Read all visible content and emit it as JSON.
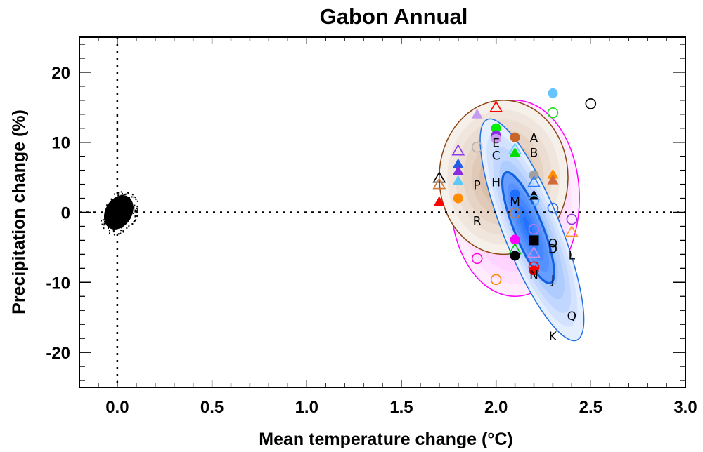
{
  "chart_data": {
    "type": "scatter",
    "title": "Gabon Annual",
    "xlabel": "Mean temperature change (°C)",
    "ylabel": "Precipitation change (%)",
    "xlim": [
      -0.2,
      3.0
    ],
    "ylim": [
      -25,
      25
    ],
    "xticks": [
      0.0,
      0.5,
      1.0,
      1.5,
      2.0,
      2.5,
      3.0
    ],
    "xtick_labels": [
      "0.0",
      "0.5",
      "1.0",
      "1.5",
      "2.0",
      "2.5",
      "3.0"
    ],
    "yticks": [
      -20,
      -10,
      0,
      10,
      20
    ],
    "ytick_labels": [
      "-20",
      "-10",
      "0",
      "10",
      "20"
    ],
    "grid": false,
    "reference_lines": [
      {
        "axis": "x",
        "value": 0,
        "style": "dotted"
      },
      {
        "axis": "y",
        "value": 0,
        "style": "dotted"
      }
    ],
    "natural_variability_cloud": {
      "center": [
        0.0,
        0.0
      ],
      "x_spread": 0.05,
      "y_spread": 2.0,
      "color": "#000000"
    },
    "ellipses": [
      {
        "name": "pink",
        "center": [
          2.1,
          2.0
        ],
        "semi_x": 0.34,
        "semi_y": 14.0,
        "angle_deg": 0,
        "fill": "#ff66ff",
        "edge": "#ff00ff"
      },
      {
        "name": "brown",
        "center": [
          2.04,
          5.0
        ],
        "semi_x": 0.34,
        "semi_y": 11.0,
        "angle_deg": 0,
        "fill": "#b8835a",
        "edge": "#8b4513"
      },
      {
        "name": "blue-outer",
        "center": [
          2.19,
          -2.5
        ],
        "semi_x": 0.15,
        "semi_y": 17.0,
        "angle_deg": -22,
        "fill": "#1e6fff",
        "edge": "#1e6fe0"
      },
      {
        "name": "blue-inner",
        "center": [
          2.17,
          -2.2
        ],
        "semi_x": 0.075,
        "semi_y": 8.5,
        "angle_deg": -22,
        "fill": "#1e6fff",
        "edge": "#1060e0"
      }
    ],
    "markers": [
      {
        "x": 1.7,
        "y": 1.5,
        "shape": "triangle",
        "filled": true,
        "color": "#ff0000"
      },
      {
        "x": 1.7,
        "y": 4.9,
        "shape": "triangle",
        "filled": false,
        "color": "#000000"
      },
      {
        "x": 1.7,
        "y": 4.0,
        "shape": "triangle",
        "filled": false,
        "color": "#cc7a3a"
      },
      {
        "x": 1.8,
        "y": 8.8,
        "shape": "triangle",
        "filled": false,
        "color": "#8a3df0"
      },
      {
        "x": 1.8,
        "y": 6.9,
        "shape": "triangle",
        "filled": true,
        "color": "#1e5fe6"
      },
      {
        "x": 1.8,
        "y": 5.9,
        "shape": "triangle",
        "filled": true,
        "color": "#8a2be2"
      },
      {
        "x": 1.8,
        "y": 4.5,
        "shape": "triangle",
        "filled": true,
        "color": "#5ec8f5"
      },
      {
        "x": 1.8,
        "y": 2.0,
        "shape": "circle",
        "filled": true,
        "color": "#ff8c00"
      },
      {
        "x": 1.9,
        "y": 14.0,
        "shape": "triangle",
        "filled": true,
        "color": "#c39bf0"
      },
      {
        "x": 1.9,
        "y": 9.3,
        "shape": "circle",
        "filled": false,
        "color": "#b4b4b4"
      },
      {
        "x": 2.0,
        "y": 15.0,
        "shape": "triangle",
        "filled": false,
        "color": "#ff0000"
      },
      {
        "x": 2.0,
        "y": 12.0,
        "shape": "circle",
        "filled": true,
        "color": "#00ee00"
      },
      {
        "x": 2.0,
        "y": 11.0,
        "shape": "circle",
        "filled": true,
        "color": "#8a2be2"
      },
      {
        "x": 2.0,
        "y": 10.5,
        "shape": "circle",
        "filled": true,
        "color": "#cc99f0"
      },
      {
        "x": 2.0,
        "y": -9.6,
        "shape": "circle",
        "filled": false,
        "color": "#ff8c00"
      },
      {
        "x": 1.9,
        "y": -6.6,
        "shape": "circle",
        "filled": false,
        "color": "#ff00dd"
      },
      {
        "x": 2.1,
        "y": 10.7,
        "shape": "circle",
        "filled": true,
        "color": "#c8662a"
      },
      {
        "x": 2.1,
        "y": 9.0,
        "shape": "triangle",
        "filled": false,
        "color": "#66ccff"
      },
      {
        "x": 2.1,
        "y": 8.5,
        "shape": "triangle",
        "filled": true,
        "color": "#00dd00"
      },
      {
        "x": 2.1,
        "y": 2.6,
        "shape": "circle",
        "filled": true,
        "color": "#1e6fff"
      },
      {
        "x": 2.1,
        "y": -0.1,
        "shape": "circle",
        "filled": false,
        "color": "#cc7a3a"
      },
      {
        "x": 2.1,
        "y": -3.9,
        "shape": "circle",
        "filled": true,
        "color": "#ff00ff"
      },
      {
        "x": 2.1,
        "y": -5.3,
        "shape": "triangle",
        "filled": false,
        "color": "#00cc00"
      },
      {
        "x": 2.1,
        "y": -6.2,
        "shape": "circle",
        "filled": true,
        "color": "#000000"
      },
      {
        "x": 2.2,
        "y": 5.3,
        "shape": "circle",
        "filled": true,
        "color": "#a0a0a0"
      },
      {
        "x": 2.2,
        "y": 4.3,
        "shape": "triangle",
        "filled": false,
        "color": "#2a7fff"
      },
      {
        "x": 2.2,
        "y": 2.4,
        "shape": "triangle",
        "filled": true,
        "color": "#000000"
      },
      {
        "x": 2.2,
        "y": 1.7,
        "shape": "circle",
        "filled": false,
        "color": "#55aaff"
      },
      {
        "x": 2.2,
        "y": -2.4,
        "shape": "circle",
        "filled": false,
        "color": "#b07cf0"
      },
      {
        "x": 2.2,
        "y": -4.0,
        "shape": "square",
        "filled": true,
        "color": "#000000"
      },
      {
        "x": 2.2,
        "y": -5.8,
        "shape": "triangle",
        "filled": false,
        "color": "#d48ae6"
      },
      {
        "x": 2.2,
        "y": -7.8,
        "shape": "circle",
        "filled": false,
        "color": "#ff0000"
      },
      {
        "x": 2.2,
        "y": -8.3,
        "shape": "circle",
        "filled": true,
        "color": "#ff0000"
      },
      {
        "x": 2.3,
        "y": 17.0,
        "shape": "circle",
        "filled": true,
        "color": "#66c4ff"
      },
      {
        "x": 2.3,
        "y": 14.2,
        "shape": "circle",
        "filled": false,
        "color": "#22dd22"
      },
      {
        "x": 2.3,
        "y": 5.4,
        "shape": "triangle",
        "filled": true,
        "color": "#ff8c00"
      },
      {
        "x": 2.3,
        "y": 4.6,
        "shape": "triangle",
        "filled": true,
        "color": "#d06a3a"
      },
      {
        "x": 2.3,
        "y": 0.6,
        "shape": "circle",
        "filled": false,
        "color": "#2a6ff0"
      },
      {
        "x": 2.4,
        "y": -1.0,
        "shape": "circle",
        "filled": false,
        "color": "#9a33e0"
      },
      {
        "x": 2.4,
        "y": -2.8,
        "shape": "triangle",
        "filled": false,
        "color": "#ff9a2a"
      },
      {
        "x": 2.5,
        "y": 15.5,
        "shape": "circle",
        "filled": false,
        "color": "#000000"
      }
    ],
    "letter_labels": [
      {
        "text": "A",
        "x": 2.2,
        "y": 10.7
      },
      {
        "text": "B",
        "x": 2.2,
        "y": 8.6
      },
      {
        "text": "C",
        "x": 2.0,
        "y": 8.2
      },
      {
        "text": "E",
        "x": 2.0,
        "y": 10.0
      },
      {
        "text": "P",
        "x": 1.9,
        "y": 4.0
      },
      {
        "text": "H",
        "x": 2.0,
        "y": 4.4
      },
      {
        "text": "M",
        "x": 2.1,
        "y": 1.6
      },
      {
        "text": "R",
        "x": 1.9,
        "y": -1.1
      },
      {
        "text": "O",
        "x": 2.3,
        "y": -4.3
      },
      {
        "text": "D",
        "x": 2.3,
        "y": -5.1
      },
      {
        "text": "L",
        "x": 2.4,
        "y": -6.0
      },
      {
        "text": "N",
        "x": 2.2,
        "y": -8.8
      },
      {
        "text": "J",
        "x": 2.3,
        "y": -9.5
      },
      {
        "text": "Q",
        "x": 2.4,
        "y": -14.7
      },
      {
        "text": "K",
        "x": 2.3,
        "y": -17.6
      }
    ]
  }
}
